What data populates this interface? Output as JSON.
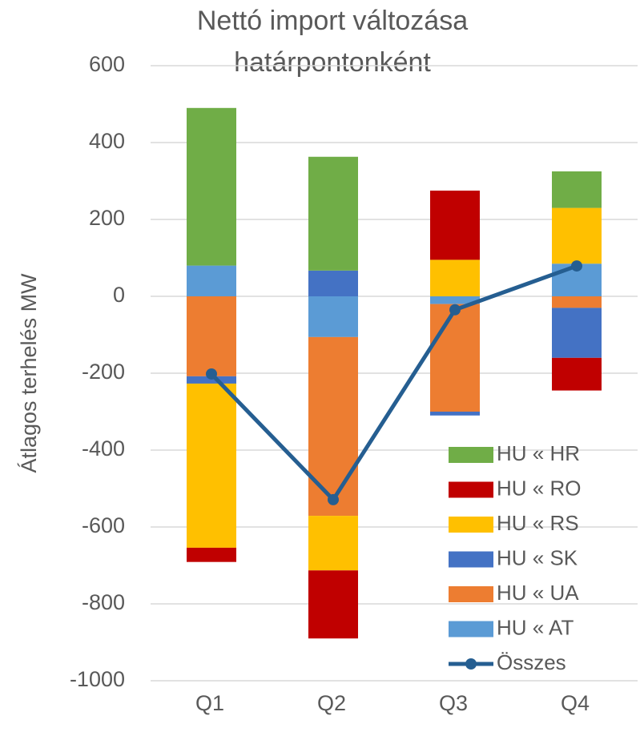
{
  "chart_data": {
    "type": "bar",
    "stacked": true,
    "title": [
      "Nettó import  változása",
      "határpontonként"
    ],
    "y_label": "Átlagos terhelés MW",
    "categories": [
      "Q1",
      "Q2",
      "Q3",
      "Q4"
    ],
    "ylim": [
      -1000,
      600
    ],
    "yticks": [
      -1000,
      -800,
      -600,
      -400,
      -200,
      0,
      200,
      400,
      600
    ],
    "grid": true,
    "series": [
      {
        "name": "HU « AT",
        "color": "#5b9bd5",
        "values": [
          80,
          -106,
          -20,
          85
        ]
      },
      {
        "name": "HU « UA",
        "color": "#ed7d31",
        "values": [
          -208,
          -465,
          -280,
          -30
        ]
      },
      {
        "name": "HU « SK",
        "color": "#4472c4",
        "values": [
          -19,
          67,
          -10,
          -130
        ]
      },
      {
        "name": "HU « RS",
        "color": "#ffc000",
        "values": [
          -427,
          -142,
          95,
          145
        ]
      },
      {
        "name": "HU « RO",
        "color": "#c00000",
        "values": [
          -37,
          -177,
          180,
          -85
        ]
      },
      {
        "name": "HU « HR",
        "color": "#70ad47",
        "values": [
          410,
          296,
          0,
          95
        ]
      },
      {
        "name": "Összes",
        "color": "#255e91",
        "type": "line",
        "values": [
          -202,
          -529,
          -35,
          79
        ]
      }
    ]
  }
}
